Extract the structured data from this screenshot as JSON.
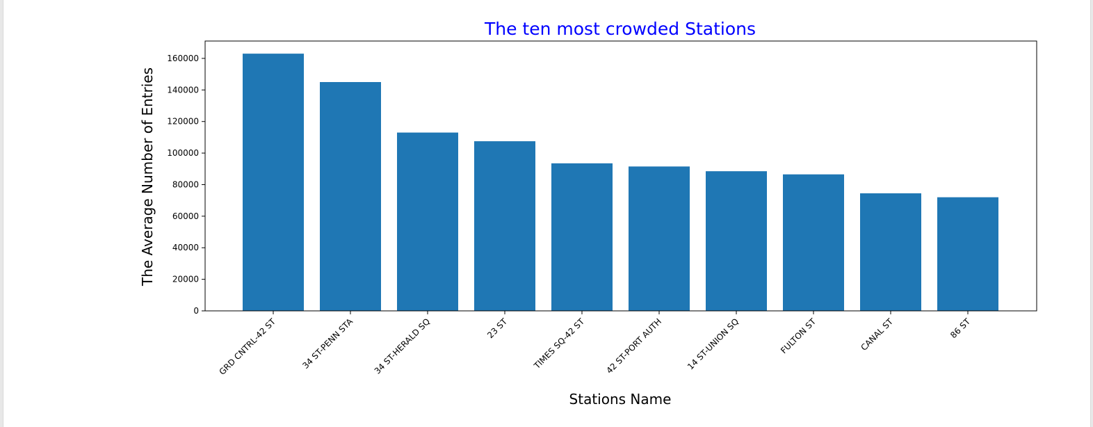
{
  "chart_data": {
    "type": "bar",
    "title": "The ten most crowded Stations",
    "title_color": "#0000ff",
    "xlabel": "Stations Name",
    "ylabel": "The Average Number of Entries",
    "categories": [
      "GRD CNTRL-42 ST",
      "34 ST-PENN STA",
      "34 ST-HERALD SQ",
      "23 ST",
      "TIMES SQ-42 ST",
      "42 ST-PORT AUTH",
      "14 ST-UNION SQ",
      "FULTON ST",
      "CANAL ST",
      "86 ST"
    ],
    "values": [
      163000,
      145000,
      113000,
      107500,
      93500,
      91500,
      88500,
      86500,
      74500,
      72000
    ],
    "ylim": [
      0,
      171000
    ],
    "yticks": [
      0,
      20000,
      40000,
      60000,
      80000,
      100000,
      120000,
      140000,
      160000
    ],
    "bar_color": "#1f77b4",
    "grid": false,
    "legend": "none"
  }
}
